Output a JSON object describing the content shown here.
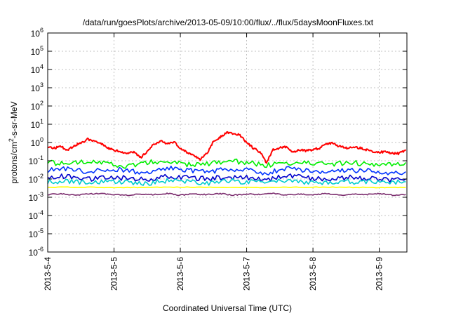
{
  "chart_data": {
    "type": "line",
    "title": "/data/run/goesPlots/archive/2013-05-09/10:00/flux/../flux/5daysMoonFluxes.txt",
    "xlabel": "Coordinated Universal Time (UTC)",
    "ylabel": {
      "prefix": "protons/cm",
      "superscript": "2",
      "suffix": "-s-sr-MeV"
    },
    "y_scale": "log",
    "ylim_exponents": [
      -6,
      6
    ],
    "y_ticks": [
      {
        "base": "10",
        "exponent": "6"
      },
      {
        "base": "10",
        "exponent": "5"
      },
      {
        "base": "10",
        "exponent": "4"
      },
      {
        "base": "10",
        "exponent": "3"
      },
      {
        "base": "10",
        "exponent": "2"
      },
      {
        "base": "10",
        "exponent": "1"
      },
      {
        "base": "10",
        "exponent": "0"
      },
      {
        "base": "10",
        "exponent": "-1"
      },
      {
        "base": "10",
        "exponent": "-2"
      },
      {
        "base": "10",
        "exponent": "-3"
      },
      {
        "base": "10",
        "exponent": "-4"
      },
      {
        "base": "10",
        "exponent": "-5"
      },
      {
        "base": "10",
        "exponent": "-6"
      }
    ],
    "xlim": [
      "2013-05-04 00:00",
      "2013-05-09 10:00"
    ],
    "x_ticks": [
      "2013-5-4",
      "2013-5-5",
      "2013-5-6",
      "2013-5-7",
      "2013-5-8",
      "2013-5-9"
    ],
    "grid": true,
    "series": [
      {
        "color": "#ff0000",
        "x_days": [
          0.0,
          0.1,
          0.2,
          0.3,
          0.4,
          0.5,
          0.6,
          0.7,
          0.8,
          0.9,
          1.0,
          1.1,
          1.2,
          1.3,
          1.4,
          1.5,
          1.6,
          1.7,
          1.8,
          1.9,
          2.0,
          2.1,
          2.2,
          2.3,
          2.4,
          2.5,
          2.6,
          2.7,
          2.8,
          2.9,
          3.0,
          3.1,
          3.2,
          3.3,
          3.4,
          3.5,
          3.6,
          3.7,
          3.8,
          3.9,
          4.0,
          4.1,
          4.2,
          4.3,
          4.4,
          4.5,
          4.6,
          4.7,
          4.8,
          4.9,
          5.0,
          5.1,
          5.2,
          5.3,
          5.4
        ],
        "values": [
          0.6,
          0.5,
          0.6,
          0.35,
          0.7,
          0.9,
          1.5,
          1.2,
          0.9,
          0.5,
          0.4,
          0.3,
          0.25,
          0.3,
          0.15,
          0.3,
          0.8,
          1.2,
          0.9,
          1.1,
          0.5,
          0.3,
          0.2,
          0.12,
          0.25,
          1.2,
          2.0,
          3.5,
          3.0,
          2.5,
          1.0,
          0.5,
          0.3,
          0.08,
          0.4,
          0.5,
          0.6,
          0.3,
          0.4,
          0.35,
          0.4,
          0.5,
          0.8,
          0.9,
          0.6,
          0.5,
          0.6,
          0.5,
          0.4,
          0.3,
          0.3,
          0.3,
          0.25,
          0.25,
          0.4
        ]
      },
      {
        "color": "#00ee00",
        "x_days": [
          0.0,
          0.3,
          0.6,
          0.9,
          1.2,
          1.5,
          1.8,
          2.1,
          2.4,
          2.7,
          3.0,
          3.3,
          3.6,
          3.9,
          4.2,
          4.5,
          4.8,
          5.1,
          5.4
        ],
        "values": [
          0.09,
          0.06,
          0.1,
          0.07,
          0.05,
          0.08,
          0.09,
          0.06,
          0.07,
          0.1,
          0.08,
          0.06,
          0.07,
          0.09,
          0.06,
          0.08,
          0.07,
          0.06,
          0.08
        ]
      },
      {
        "color": "#0033ff",
        "x_days": [
          0.0,
          0.3,
          0.6,
          0.9,
          1.2,
          1.5,
          1.8,
          2.1,
          2.4,
          2.7,
          3.0,
          3.3,
          3.6,
          3.9,
          4.2,
          4.5,
          4.8,
          5.1,
          5.4
        ],
        "values": [
          0.03,
          0.04,
          0.025,
          0.035,
          0.03,
          0.02,
          0.04,
          0.03,
          0.025,
          0.035,
          0.03,
          0.02,
          0.04,
          0.03,
          0.025,
          0.03,
          0.03,
          0.02,
          0.025
        ]
      },
      {
        "color": "#0000cc",
        "x_days": [
          0.0,
          0.3,
          0.6,
          0.9,
          1.2,
          1.5,
          1.8,
          2.1,
          2.4,
          2.7,
          3.0,
          3.3,
          3.6,
          3.9,
          4.2,
          4.5,
          4.8,
          5.1,
          5.4
        ],
        "values": [
          0.012,
          0.015,
          0.01,
          0.013,
          0.011,
          0.009,
          0.014,
          0.012,
          0.01,
          0.013,
          0.012,
          0.009,
          0.015,
          0.012,
          0.01,
          0.012,
          0.011,
          0.009,
          0.01
        ]
      },
      {
        "color": "#00cccc",
        "x_days": [
          0.0,
          0.3,
          0.6,
          0.9,
          1.2,
          1.5,
          1.8,
          2.1,
          2.4,
          2.7,
          3.0,
          3.3,
          3.6,
          3.9,
          4.2,
          4.5,
          4.8,
          5.1,
          5.4
        ],
        "values": [
          0.007,
          0.008,
          0.006,
          0.008,
          0.007,
          0.006,
          0.008,
          0.007,
          0.006,
          0.008,
          0.007,
          0.006,
          0.008,
          0.007,
          0.006,
          0.007,
          0.007,
          0.006,
          0.007
        ]
      },
      {
        "color": "#ffff00",
        "x_days": [
          0.0,
          0.5,
          1.0,
          1.5,
          2.0,
          2.5,
          3.0,
          3.5,
          4.0,
          4.5,
          5.0,
          5.4
        ],
        "values": [
          0.0035,
          0.0036,
          0.0034,
          0.0035,
          0.0036,
          0.0035,
          0.0034,
          0.0035,
          0.0036,
          0.0035,
          0.0034,
          0.0035
        ]
      },
      {
        "color": "#7b2d6e",
        "x_days": [
          0.0,
          0.2,
          0.4,
          0.6,
          0.8,
          1.0,
          1.2,
          1.4,
          1.6,
          1.8,
          2.0,
          2.2,
          2.4,
          2.6,
          2.8,
          3.0,
          3.2,
          3.4,
          3.6,
          3.8,
          4.0,
          4.2,
          4.4,
          4.6,
          4.8,
          5.0,
          5.2,
          5.4
        ],
        "values": [
          0.0014,
          0.0016,
          0.0013,
          0.0015,
          0.0016,
          0.0014,
          0.0013,
          0.0015,
          0.0014,
          0.0016,
          0.0013,
          0.0015,
          0.0014,
          0.0016,
          0.0013,
          0.0015,
          0.0014,
          0.0016,
          0.0013,
          0.0015,
          0.0014,
          0.0016,
          0.0013,
          0.0015,
          0.0014,
          0.0016,
          0.0013,
          0.0014
        ]
      }
    ]
  }
}
